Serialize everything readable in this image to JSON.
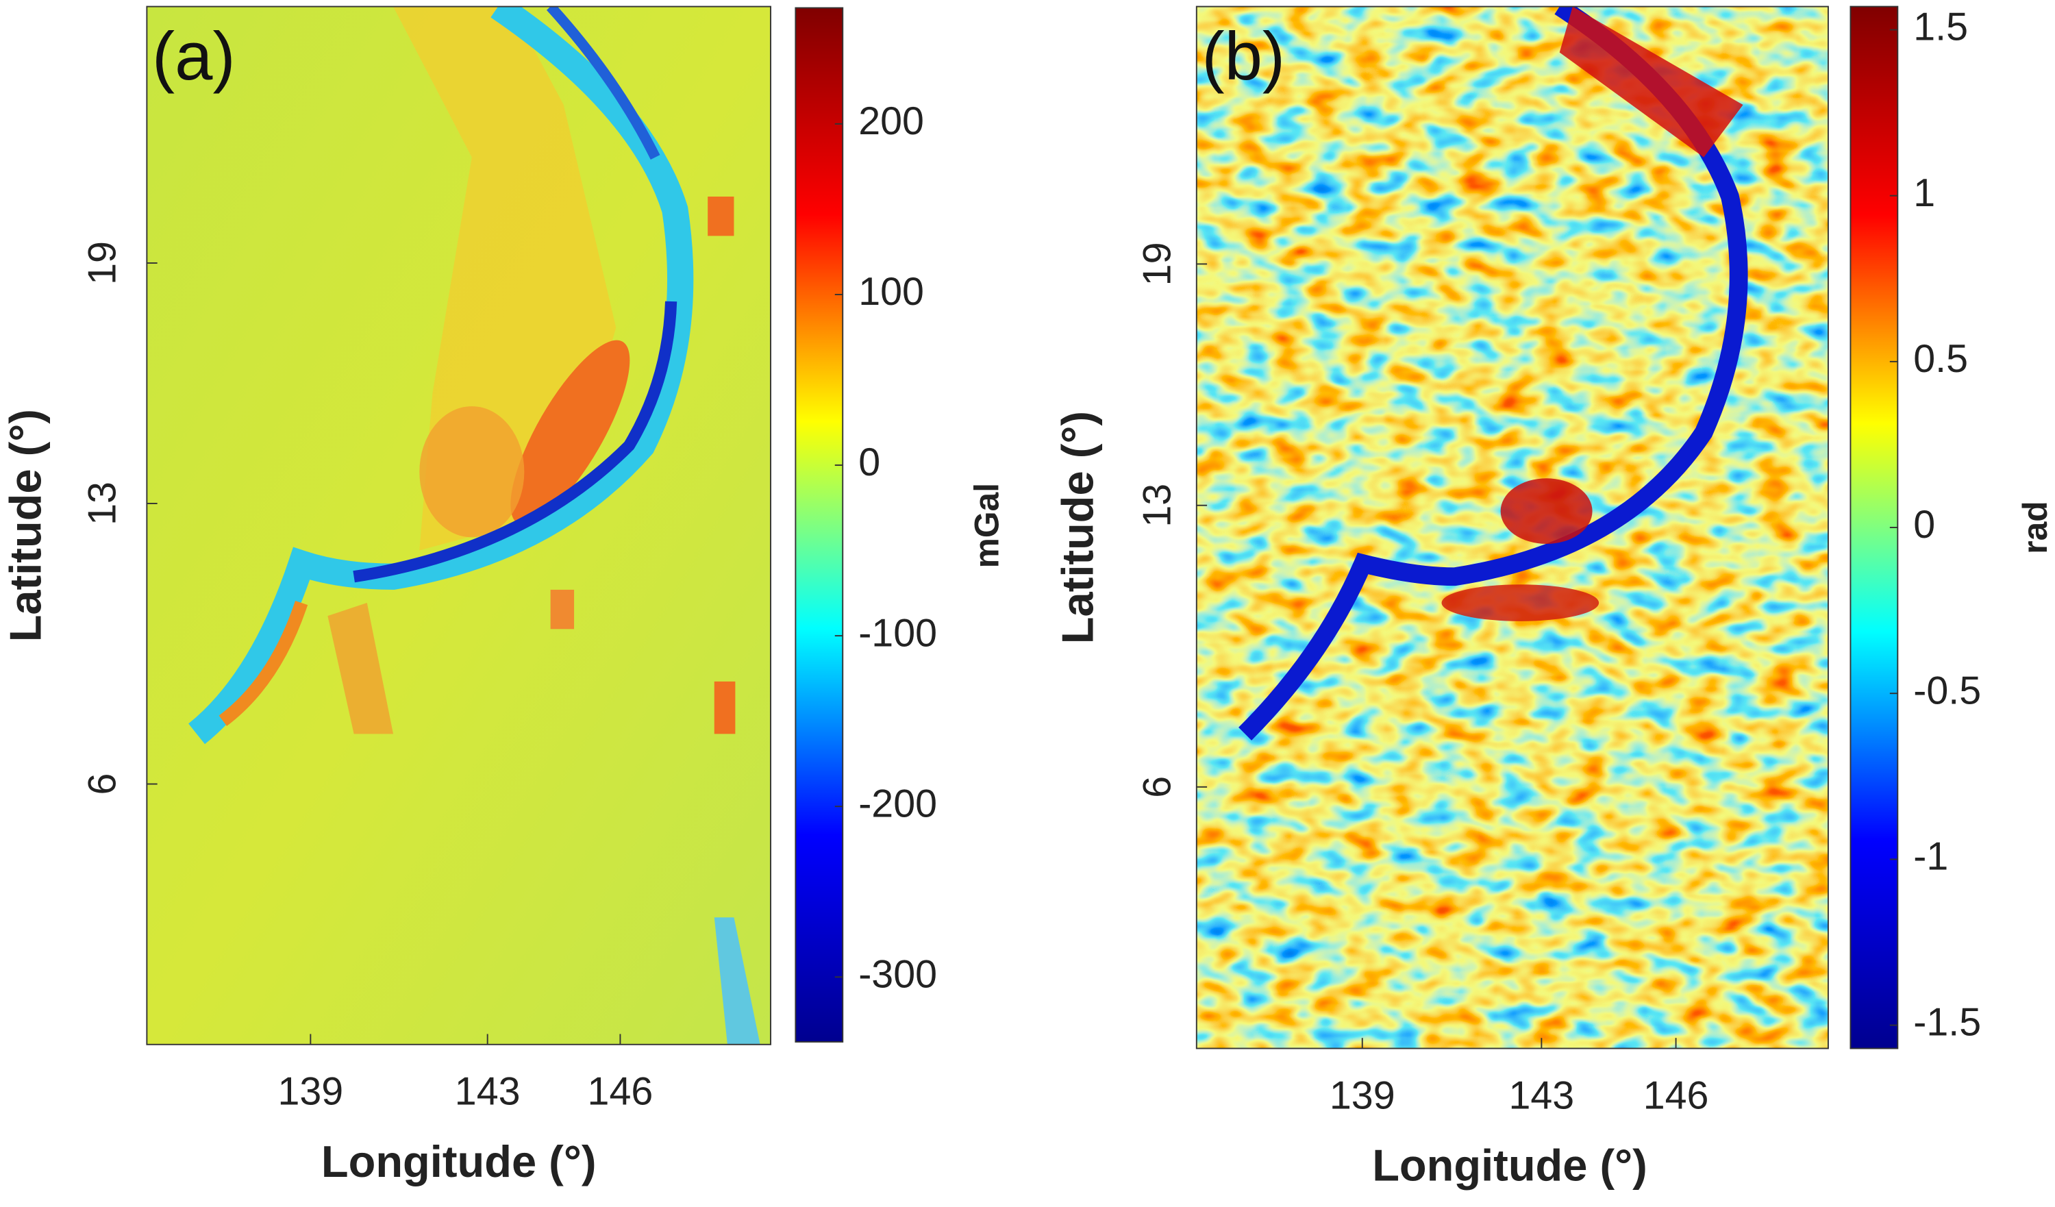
{
  "chart_data": [
    {
      "type": "heatmap",
      "panel_label": "(a)",
      "xlabel": "Longitude (°)",
      "ylabel": "Latitude (°)",
      "xlim": [
        135.3,
        149.4
      ],
      "xticks": [
        139,
        143,
        146
      ],
      "ylim": [
        -0.5,
        25.4
      ],
      "yticks": [
        6,
        13,
        19
      ],
      "colormap": "jet",
      "colorbar_label": "mGal",
      "clim": [
        -338,
        268
      ],
      "cticks": [
        -300,
        -200,
        -100,
        0,
        100,
        200
      ]
    },
    {
      "type": "heatmap",
      "panel_label": "(b)",
      "xlabel": "Longitude (°)",
      "ylabel": "Latitude (°)",
      "xlim": [
        135.3,
        149.4
      ],
      "xticks": [
        139,
        143,
        146
      ],
      "ylim": [
        -0.5,
        25.4
      ],
      "yticks": [
        6,
        13,
        19
      ],
      "colormap": "jet",
      "colorbar_label": "rad",
      "clim": [
        -1.57,
        1.57
      ],
      "cticks": [
        -1.5,
        -1,
        -0.5,
        0,
        0.5,
        1,
        1.5
      ]
    }
  ]
}
